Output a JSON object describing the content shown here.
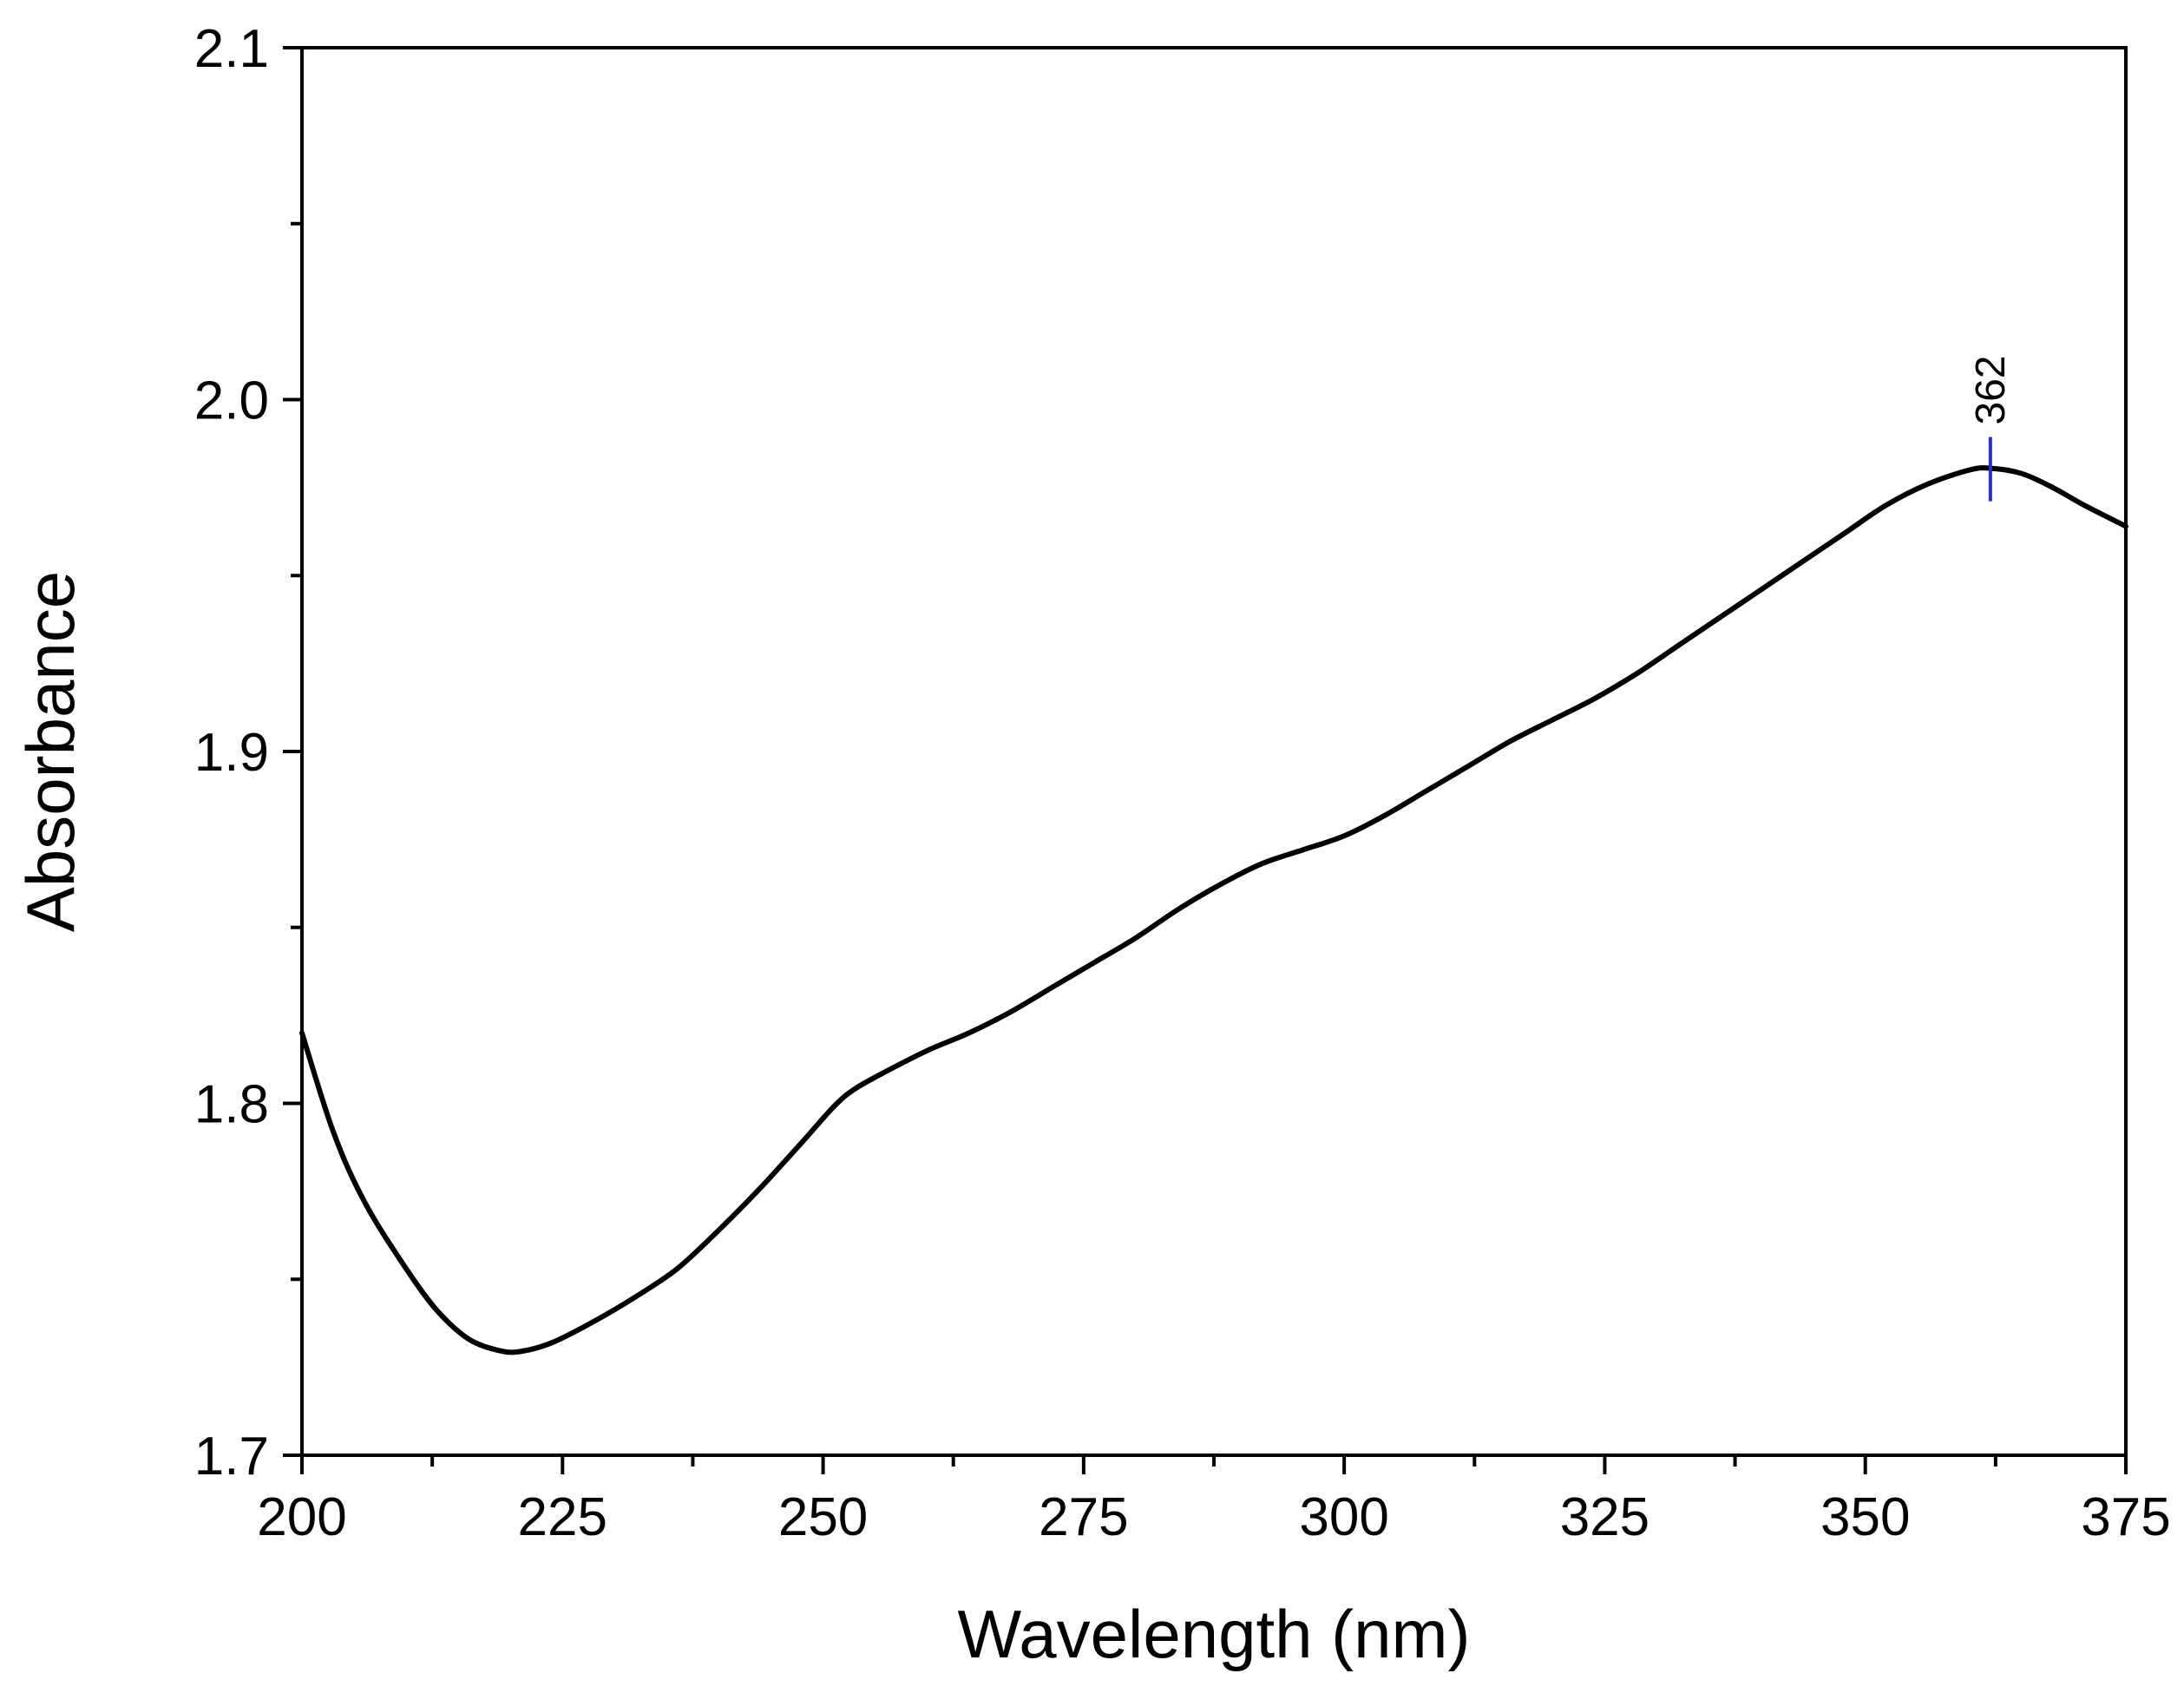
{
  "chart_data": {
    "type": "line",
    "title": "",
    "xlabel": "Wavelength (nm)",
    "ylabel": "Absorbance",
    "xlim": [
      200,
      375
    ],
    "ylim": [
      1.7,
      2.1
    ],
    "grid": false,
    "legend": "none",
    "x_ticks": [
      200,
      225,
      250,
      275,
      300,
      325,
      350,
      375
    ],
    "x_tick_labels": [
      "200",
      "225",
      "250",
      "275",
      "300",
      "325",
      "350",
      "375"
    ],
    "x_minor_ticks": [
      212.5,
      237.5,
      262.5,
      287.5,
      312.5,
      337.5,
      362.5
    ],
    "y_ticks": [
      1.7,
      1.8,
      1.9,
      2.0,
      2.1
    ],
    "y_tick_labels": [
      "1.7",
      "1.8",
      "1.9",
      "2.0",
      "2.1"
    ],
    "y_minor_ticks": [
      1.75,
      1.85,
      1.95,
      2.05
    ],
    "series": [
      {
        "name": "Absorbance",
        "color": "#000000",
        "x": [
          200,
          203,
          206,
          210,
          213,
          216,
          219,
          221,
          224,
          228,
          232,
          236,
          240,
          244,
          248,
          251,
          253,
          256,
          260,
          264,
          268,
          272,
          276,
          280,
          284,
          288,
          292,
          296,
          300,
          304,
          308,
          312,
          316,
          320,
          324,
          328,
          332,
          336,
          340,
          344,
          348,
          352,
          356,
          360,
          362,
          365,
          368,
          371,
          375
        ],
        "y": [
          1.82,
          1.792,
          1.772,
          1.753,
          1.741,
          1.733,
          1.7297,
          1.7295,
          1.732,
          1.738,
          1.745,
          1.753,
          1.764,
          1.776,
          1.789,
          1.799,
          1.804,
          1.809,
          1.815,
          1.82,
          1.826,
          1.833,
          1.84,
          1.847,
          1.855,
          1.862,
          1.868,
          1.872,
          1.876,
          1.882,
          1.889,
          1.896,
          1.903,
          1.909,
          1.915,
          1.922,
          1.93,
          1.938,
          1.946,
          1.954,
          1.962,
          1.97,
          1.976,
          1.98,
          1.9805,
          1.979,
          1.975,
          1.97,
          1.964
        ]
      }
    ],
    "annotations": [
      {
        "text": "362",
        "x": 362,
        "y": 1.98,
        "marker_color": "#2233cc"
      }
    ]
  }
}
